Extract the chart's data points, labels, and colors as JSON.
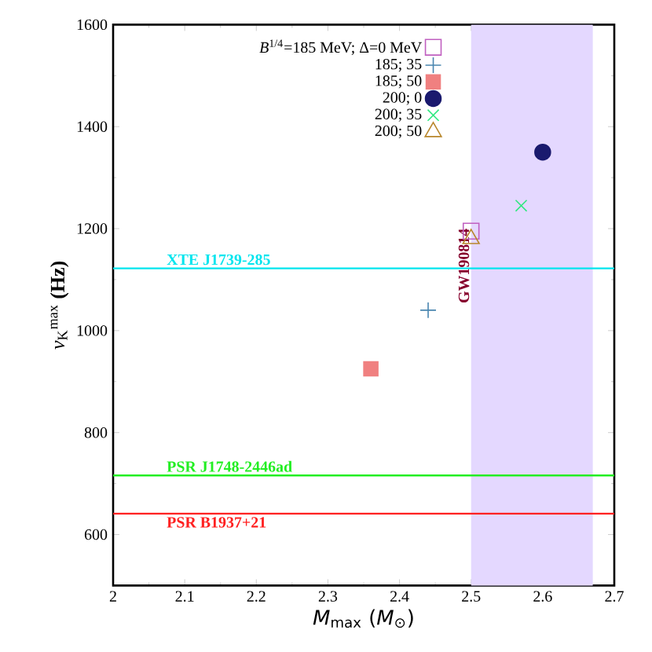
{
  "chart_data": {
    "type": "scatter",
    "xlabel": "*M*$_{max}$ (*M*$_{⊙}$)",
    "ylabel": "*ν*$_{K}$$^{max}$ **(Hz)**",
    "xlim": [
      2,
      2.7
    ],
    "xticks": [
      2,
      2.1,
      2.2,
      2.3,
      2.4,
      2.5,
      2.6,
      2.7
    ],
    "ylim": [
      500,
      1600
    ],
    "yticks": [
      600,
      800,
      1000,
      1200,
      1400,
      1600
    ],
    "legend": "top",
    "series": [
      {
        "name": "*B*$^{1/4}$=185 MeV; Δ=0 MeV",
        "color": "#c060c0",
        "marker": "square-open",
        "x": [
          2.5
        ],
        "values": [
          1195
        ]
      },
      {
        "name": "185; 35",
        "color": "#4a86b0",
        "marker": "plus",
        "x": [
          2.44
        ],
        "values": [
          1040
        ]
      },
      {
        "name": "185; 50",
        "color": "#f08080",
        "marker": "square",
        "x": [
          2.36
        ],
        "values": [
          925
        ]
      },
      {
        "name": "200; 0",
        "color": "#1a1a6e",
        "marker": "circle",
        "x": [
          2.6
        ],
        "values": [
          1350
        ]
      },
      {
        "name": "200; 35",
        "color": "#30e880",
        "marker": "cross",
        "x": [
          2.57
        ],
        "values": [
          1245
        ]
      },
      {
        "name": "200; 50",
        "color": "#b8862b",
        "marker": "triangle-open",
        "x": [
          2.5
        ],
        "values": [
          1180
        ]
      }
    ],
    "ref_lines": [
      {
        "axis": "y",
        "value": 1122,
        "label": "XTE J1739-285",
        "color": "#00e5ee"
      },
      {
        "axis": "y",
        "value": 716,
        "label": "PSR J1748-2446ad",
        "color": "#22ee22"
      },
      {
        "axis": "y",
        "value": 641,
        "label": "PSR B1937+21",
        "color": "#ff2020"
      }
    ],
    "bands": [
      {
        "axis": "x",
        "from": 2.5,
        "to": 2.67,
        "label": "GW190814",
        "color": "#e4d8ff"
      }
    ]
  }
}
